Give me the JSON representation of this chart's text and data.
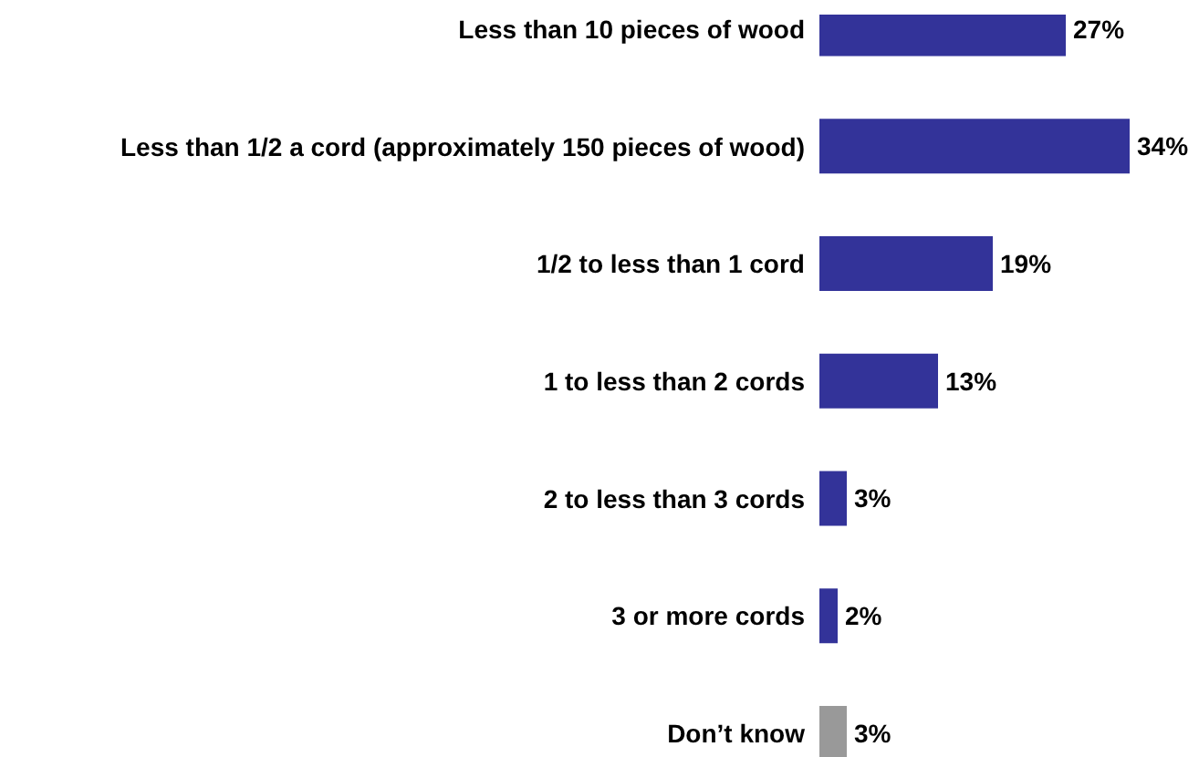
{
  "chart_data": {
    "type": "bar",
    "orientation": "horizontal",
    "categories": [
      "Less than 10 pieces of wood",
      "Less than 1/2 a cord (approximately 150 pieces of wood)",
      "1/2 to less than 1 cord",
      "1 to less than 2 cords",
      "2 to less than 3 cords",
      "3 or more cords",
      "Don’t know"
    ],
    "values": [
      27,
      34,
      19,
      13,
      3,
      2,
      3
    ],
    "colors": [
      "#333399",
      "#333399",
      "#333399",
      "#333399",
      "#333399",
      "#333399",
      "#999999"
    ],
    "value_labels": [
      "27%",
      "34%",
      "19%",
      "13%",
      "3%",
      "2%",
      "3%"
    ],
    "grid": false,
    "legend": false
  }
}
